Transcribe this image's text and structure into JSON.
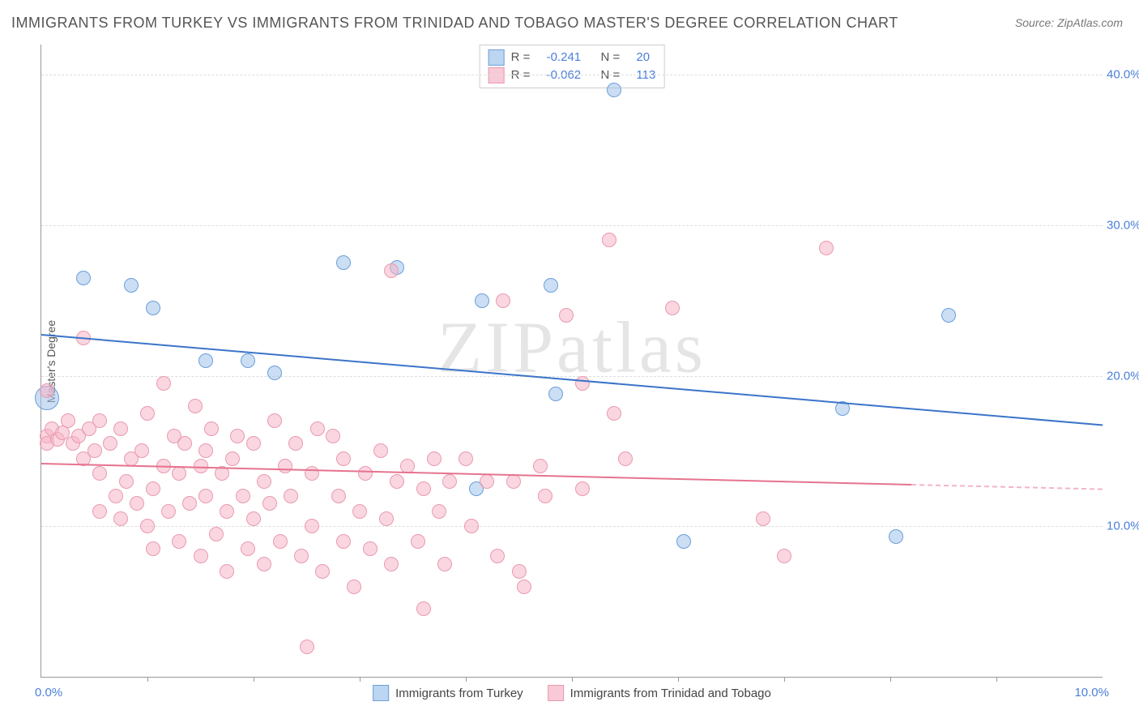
{
  "title": "IMMIGRANTS FROM TURKEY VS IMMIGRANTS FROM TRINIDAD AND TOBAGO MASTER'S DEGREE CORRELATION CHART",
  "source_label": "Source:",
  "source_value": "ZipAtlas.com",
  "watermark": "ZIPatlas",
  "ylabel": "Master's Degree",
  "chart": {
    "type": "scatter",
    "xlim": [
      0,
      10
    ],
    "ylim": [
      0,
      42
    ],
    "ytick_labels": [
      "10.0%",
      "20.0%",
      "30.0%",
      "40.0%"
    ],
    "yticks": [
      10,
      20,
      30,
      40
    ],
    "xticks": [
      1,
      2,
      3,
      4,
      5,
      6,
      7,
      8,
      9
    ],
    "xaxis_min_label": "0.0%",
    "xaxis_max_label": "10.0%",
    "grid_color": "#dddddd",
    "axis_color": "#999999",
    "background_color": "#ffffff",
    "tick_label_color": "#4a7fd8",
    "marker_radius_default": 8,
    "series": [
      {
        "id": "turkey",
        "label": "Immigrants from Turkey",
        "swatch_fill": "#a0c3eb",
        "swatch_border": "#6a9fd8",
        "R": "-0.241",
        "N": "20",
        "trend": {
          "x0": 0,
          "y0": 22.8,
          "x1": 10,
          "y1": 16.8,
          "color": "#3b74c9",
          "width": 2
        },
        "points": [
          {
            "x": 0.05,
            "y": 18.5,
            "r": 14
          },
          {
            "x": 0.4,
            "y": 26.5
          },
          {
            "x": 0.85,
            "y": 26.0
          },
          {
            "x": 1.05,
            "y": 24.5
          },
          {
            "x": 1.55,
            "y": 21.0
          },
          {
            "x": 1.95,
            "y": 21.0
          },
          {
            "x": 2.2,
            "y": 20.2
          },
          {
            "x": 2.85,
            "y": 27.5
          },
          {
            "x": 3.35,
            "y": 27.2
          },
          {
            "x": 4.15,
            "y": 25.0
          },
          {
            "x": 4.1,
            "y": 12.5
          },
          {
            "x": 4.8,
            "y": 26.0
          },
          {
            "x": 4.85,
            "y": 18.8
          },
          {
            "x": 5.4,
            "y": 39.0
          },
          {
            "x": 6.05,
            "y": 9.0
          },
          {
            "x": 7.55,
            "y": 17.8
          },
          {
            "x": 8.05,
            "y": 9.3
          },
          {
            "x": 8.55,
            "y": 24.0
          }
        ]
      },
      {
        "id": "trinidad",
        "label": "Immigrants from Trinidad and Tobago",
        "swatch_fill": "#f5b4c8",
        "swatch_border": "#e99aad",
        "R": "-0.062",
        "N": "113",
        "trend": {
          "x0": 0,
          "y0": 14.2,
          "x1": 8.2,
          "y1": 12.8,
          "color": "#e6738e",
          "width": 2,
          "dashed_ext": {
            "x0": 8.2,
            "y0": 12.8,
            "x1": 10,
            "y1": 12.5
          }
        },
        "points": [
          {
            "x": 0.05,
            "y": 19.0
          },
          {
            "x": 0.05,
            "y": 16.0
          },
          {
            "x": 0.05,
            "y": 15.5
          },
          {
            "x": 0.1,
            "y": 16.5
          },
          {
            "x": 0.15,
            "y": 15.8
          },
          {
            "x": 0.2,
            "y": 16.2
          },
          {
            "x": 0.25,
            "y": 17.0
          },
          {
            "x": 0.3,
            "y": 15.5
          },
          {
            "x": 0.35,
            "y": 16.0
          },
          {
            "x": 0.4,
            "y": 22.5
          },
          {
            "x": 0.4,
            "y": 14.5
          },
          {
            "x": 0.45,
            "y": 16.5
          },
          {
            "x": 0.5,
            "y": 15.0
          },
          {
            "x": 0.55,
            "y": 13.5
          },
          {
            "x": 0.55,
            "y": 11.0
          },
          {
            "x": 0.55,
            "y": 17.0
          },
          {
            "x": 0.65,
            "y": 15.5
          },
          {
            "x": 0.7,
            "y": 12.0
          },
          {
            "x": 0.75,
            "y": 16.5
          },
          {
            "x": 0.75,
            "y": 10.5
          },
          {
            "x": 0.8,
            "y": 13.0
          },
          {
            "x": 0.85,
            "y": 14.5
          },
          {
            "x": 0.9,
            "y": 11.5
          },
          {
            "x": 0.95,
            "y": 15.0
          },
          {
            "x": 1.0,
            "y": 17.5
          },
          {
            "x": 1.0,
            "y": 10.0
          },
          {
            "x": 1.05,
            "y": 12.5
          },
          {
            "x": 1.05,
            "y": 8.5
          },
          {
            "x": 1.15,
            "y": 14.0
          },
          {
            "x": 1.15,
            "y": 19.5
          },
          {
            "x": 1.2,
            "y": 11.0
          },
          {
            "x": 1.25,
            "y": 16.0
          },
          {
            "x": 1.3,
            "y": 13.5
          },
          {
            "x": 1.3,
            "y": 9.0
          },
          {
            "x": 1.35,
            "y": 15.5
          },
          {
            "x": 1.4,
            "y": 11.5
          },
          {
            "x": 1.45,
            "y": 18.0
          },
          {
            "x": 1.5,
            "y": 14.0
          },
          {
            "x": 1.5,
            "y": 8.0
          },
          {
            "x": 1.55,
            "y": 15.0
          },
          {
            "x": 1.55,
            "y": 12.0
          },
          {
            "x": 1.6,
            "y": 16.5
          },
          {
            "x": 1.65,
            "y": 9.5
          },
          {
            "x": 1.7,
            "y": 13.5
          },
          {
            "x": 1.75,
            "y": 11.0
          },
          {
            "x": 1.75,
            "y": 7.0
          },
          {
            "x": 1.8,
            "y": 14.5
          },
          {
            "x": 1.85,
            "y": 16.0
          },
          {
            "x": 1.9,
            "y": 12.0
          },
          {
            "x": 1.95,
            "y": 8.5
          },
          {
            "x": 2.0,
            "y": 10.5
          },
          {
            "x": 2.0,
            "y": 15.5
          },
          {
            "x": 2.1,
            "y": 13.0
          },
          {
            "x": 2.1,
            "y": 7.5
          },
          {
            "x": 2.15,
            "y": 11.5
          },
          {
            "x": 2.2,
            "y": 17.0
          },
          {
            "x": 2.25,
            "y": 9.0
          },
          {
            "x": 2.3,
            "y": 14.0
          },
          {
            "x": 2.35,
            "y": 12.0
          },
          {
            "x": 2.4,
            "y": 15.5
          },
          {
            "x": 2.45,
            "y": 8.0
          },
          {
            "x": 2.5,
            "y": 2.0
          },
          {
            "x": 2.55,
            "y": 13.5
          },
          {
            "x": 2.55,
            "y": 10.0
          },
          {
            "x": 2.6,
            "y": 16.5
          },
          {
            "x": 2.65,
            "y": 7.0
          },
          {
            "x": 2.75,
            "y": 16.0
          },
          {
            "x": 2.8,
            "y": 12.0
          },
          {
            "x": 2.85,
            "y": 9.0
          },
          {
            "x": 2.85,
            "y": 14.5
          },
          {
            "x": 2.95,
            "y": 6.0
          },
          {
            "x": 3.0,
            "y": 11.0
          },
          {
            "x": 3.05,
            "y": 13.5
          },
          {
            "x": 3.1,
            "y": 8.5
          },
          {
            "x": 3.2,
            "y": 15.0
          },
          {
            "x": 3.25,
            "y": 10.5
          },
          {
            "x": 3.3,
            "y": 7.5
          },
          {
            "x": 3.3,
            "y": 27.0
          },
          {
            "x": 3.35,
            "y": 13.0
          },
          {
            "x": 3.45,
            "y": 14.0
          },
          {
            "x": 3.55,
            "y": 9.0
          },
          {
            "x": 3.6,
            "y": 12.5
          },
          {
            "x": 3.6,
            "y": 4.5
          },
          {
            "x": 3.7,
            "y": 14.5
          },
          {
            "x": 3.75,
            "y": 11.0
          },
          {
            "x": 3.8,
            "y": 7.5
          },
          {
            "x": 3.85,
            "y": 13.0
          },
          {
            "x": 4.0,
            "y": 14.5
          },
          {
            "x": 4.05,
            "y": 10.0
          },
          {
            "x": 4.2,
            "y": 13.0
          },
          {
            "x": 4.3,
            "y": 8.0
          },
          {
            "x": 4.35,
            "y": 25.0
          },
          {
            "x": 4.45,
            "y": 13.0
          },
          {
            "x": 4.5,
            "y": 7.0
          },
          {
            "x": 4.55,
            "y": 6.0
          },
          {
            "x": 4.7,
            "y": 14.0
          },
          {
            "x": 4.75,
            "y": 12.0
          },
          {
            "x": 4.95,
            "y": 24.0
          },
          {
            "x": 5.1,
            "y": 19.5
          },
          {
            "x": 5.1,
            "y": 12.5
          },
          {
            "x": 5.35,
            "y": 29.0
          },
          {
            "x": 5.4,
            "y": 17.5
          },
          {
            "x": 5.5,
            "y": 14.5
          },
          {
            "x": 5.95,
            "y": 24.5
          },
          {
            "x": 6.8,
            "y": 10.5
          },
          {
            "x": 7.0,
            "y": 8.0
          },
          {
            "x": 7.4,
            "y": 28.5
          }
        ]
      }
    ]
  },
  "legend_top": {
    "R_label": "R =",
    "N_label": "N ="
  },
  "legend_bottom": {
    "items": [
      {
        "label": "Immigrants from Turkey"
      },
      {
        "label": "Immigrants from Trinidad and Tobago"
      }
    ]
  }
}
